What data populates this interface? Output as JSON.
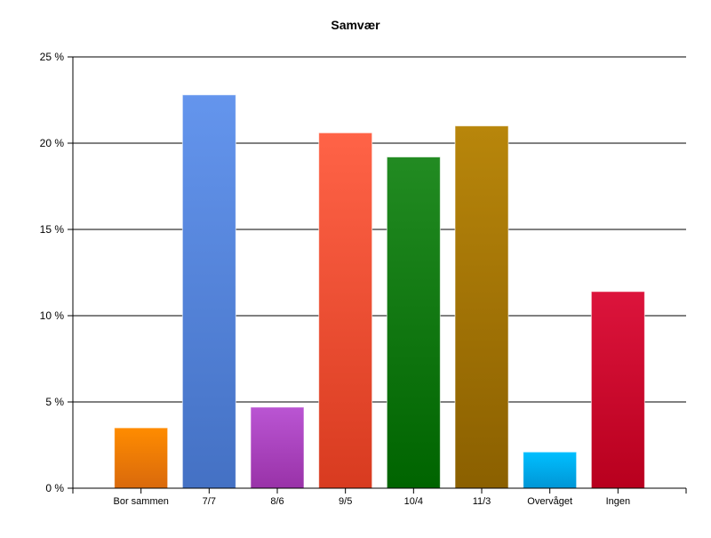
{
  "chart_data": {
    "type": "bar",
    "title": "Samvær",
    "xlabel": "",
    "ylabel": "",
    "categories": [
      "Bor sammen",
      "7/7",
      "8/6",
      "9/5",
      "10/4",
      "11/3",
      "Overvåget",
      "Ingen"
    ],
    "values": [
      3.5,
      22.8,
      4.7,
      20.6,
      19.2,
      21.0,
      2.1,
      11.4
    ],
    "ylim": [
      0,
      25
    ],
    "yticks": [
      "0 %",
      "5 %",
      "10 %",
      "15 %",
      "20 %",
      "25 %"
    ],
    "grid": true,
    "legend": "none",
    "colors": [
      [
        "#ff8c00",
        "#d9690c"
      ],
      [
        "#6495ed",
        "#4471c4"
      ],
      [
        "#ba55d3",
        "#9932a8"
      ],
      [
        "#ff6347",
        "#d83b20"
      ],
      [
        "#228b22",
        "#006400"
      ],
      [
        "#b8860b",
        "#8b6000"
      ],
      [
        "#00bfff",
        "#0096d6"
      ],
      [
        "#dc143c",
        "#b8001e"
      ]
    ]
  }
}
